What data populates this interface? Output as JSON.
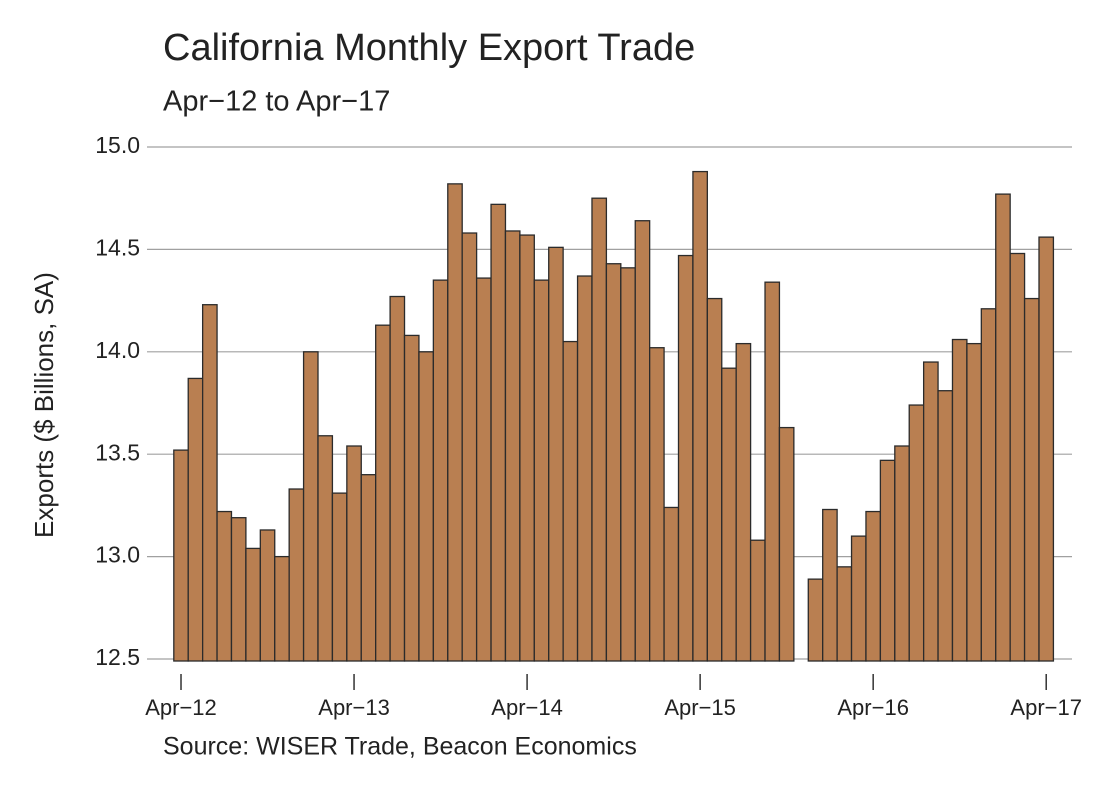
{
  "chart_data": {
    "type": "bar",
    "title": "California Monthly Export Trade",
    "subtitle": "Apr−12 to Apr−17",
    "y_label": "Exports ($ Billions, SA)",
    "source": "Source: WISER Trade, Beacon Economics",
    "categories": [
      "Apr−12",
      null,
      null,
      null,
      null,
      null,
      null,
      null,
      null,
      null,
      null,
      null,
      "Apr−13",
      null,
      null,
      null,
      null,
      null,
      null,
      null,
      null,
      null,
      null,
      null,
      "Apr−14",
      null,
      null,
      null,
      null,
      null,
      null,
      null,
      null,
      null,
      null,
      null,
      "Apr−15",
      null,
      null,
      null,
      null,
      null,
      null,
      null,
      null,
      null,
      null,
      null,
      "Apr−16",
      null,
      null,
      null,
      null,
      null,
      null,
      null,
      null,
      null,
      null,
      null,
      "Apr−17"
    ],
    "values": [
      13.52,
      13.87,
      14.23,
      13.22,
      13.19,
      13.04,
      13.13,
      13.0,
      13.33,
      14.0,
      13.59,
      13.31,
      13.54,
      13.4,
      14.13,
      14.27,
      14.08,
      14.0,
      14.35,
      14.82,
      14.58,
      14.36,
      14.72,
      14.59,
      14.57,
      14.35,
      14.51,
      14.05,
      14.37,
      14.75,
      14.43,
      14.41,
      14.64,
      14.02,
      13.24,
      14.47,
      14.88,
      14.26,
      13.92,
      14.04,
      13.08,
      14.34,
      13.63,
      null,
      12.89,
      13.23,
      12.95,
      13.1,
      13.22,
      13.47,
      13.54,
      13.74,
      13.95,
      13.81,
      14.06,
      14.04,
      14.21,
      14.77,
      14.48,
      14.26,
      14.56
    ],
    "color": "#b97f51",
    "ylim": [
      12.5,
      15.0
    ],
    "yticks": [
      {
        "value": 12.5,
        "label": "12.5"
      },
      {
        "value": 13.0,
        "label": "13.0"
      },
      {
        "value": 13.5,
        "label": "13.5"
      },
      {
        "value": 14.0,
        "label": "14.0"
      },
      {
        "value": 14.5,
        "label": "14.5"
      },
      {
        "value": 15.0,
        "label": "15.0"
      }
    ],
    "grid": true
  }
}
